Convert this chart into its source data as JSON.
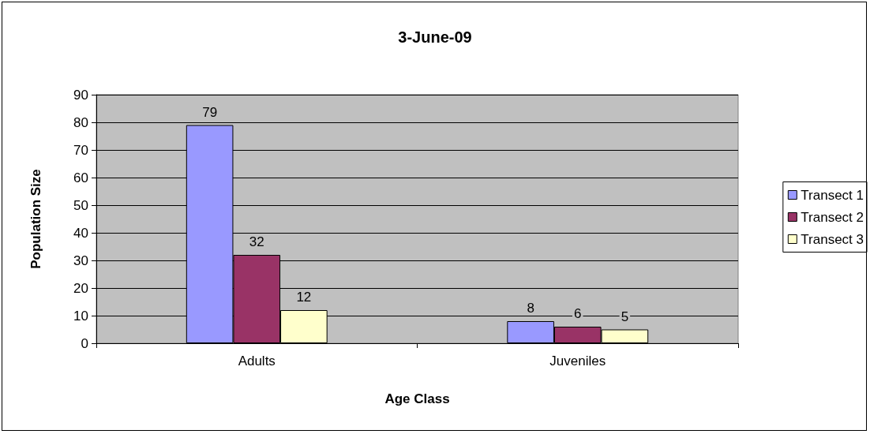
{
  "chart_data": {
    "type": "bar",
    "title": "3-June-09",
    "xlabel": "Age Class",
    "ylabel": "Population Size",
    "categories": [
      "Adults",
      "Juveniles"
    ],
    "series": [
      {
        "name": "Transect 1",
        "color": "#9999ff",
        "values": [
          79,
          8
        ]
      },
      {
        "name": "Transect 2",
        "color": "#993366",
        "values": [
          32,
          6
        ]
      },
      {
        "name": "Transect 3",
        "color": "#ffffcc",
        "values": [
          12,
          5
        ]
      }
    ],
    "ylim": [
      0,
      90
    ],
    "yticks": [
      0,
      10,
      20,
      30,
      40,
      50,
      60,
      70,
      80,
      90
    ],
    "grid": "y",
    "legend": "right",
    "data_labels": true
  }
}
